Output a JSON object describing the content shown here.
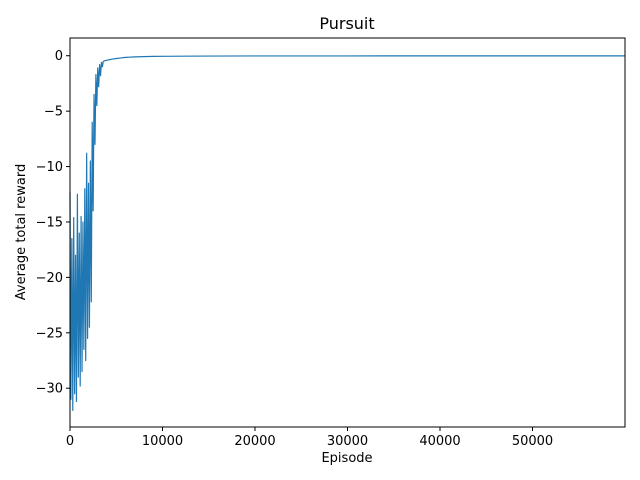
{
  "chart_data": {
    "type": "line",
    "title": "Pursuit",
    "xlabel": "Episode",
    "ylabel": "Average total reward",
    "xlim": [
      0,
      60000
    ],
    "ylim": [
      -33.5,
      1.6
    ],
    "x_ticks": [
      0,
      10000,
      20000,
      30000,
      40000,
      50000
    ],
    "x_tick_labels": [
      "0",
      "10000",
      "20000",
      "30000",
      "40000",
      "50000"
    ],
    "y_ticks": [
      0,
      -5,
      -10,
      -15,
      -20,
      -25,
      -30
    ],
    "y_tick_labels": [
      "0",
      "−5",
      "−10",
      "−15",
      "−20",
      "−25",
      "−30"
    ],
    "grid": false,
    "series": [
      {
        "color": "#1f77b4",
        "x": [
          0,
          100,
          200,
          300,
          400,
          500,
          600,
          700,
          800,
          900,
          1000,
          1100,
          1200,
          1300,
          1400,
          1500,
          1600,
          1700,
          1800,
          1900,
          2000,
          2100,
          2200,
          2300,
          2400,
          2500,
          2600,
          2700,
          2800,
          2900,
          3000,
          3100,
          3200,
          3300,
          3400,
          3500,
          3600,
          3800,
          4000,
          4300,
          4600,
          5000,
          5500,
          6000,
          7000,
          8000,
          9000,
          10000,
          12000,
          15000,
          20000,
          30000,
          40000,
          50000,
          60000
        ],
        "y": [
          -12.3,
          -31.0,
          -16.5,
          -32.0,
          -14.6,
          -30.5,
          -18.0,
          -31.2,
          -12.5,
          -29.0,
          -16.0,
          -29.8,
          -14.5,
          -28.5,
          -15.0,
          -26.5,
          -12.0,
          -27.5,
          -8.8,
          -25.5,
          -11.5,
          -24.5,
          -9.5,
          -22.2,
          -6.0,
          -14.0,
          -3.5,
          -8.0,
          -1.7,
          -4.5,
          -1.1,
          -2.8,
          -0.8,
          -1.8,
          -0.6,
          -1.0,
          -0.5,
          -0.45,
          -0.4,
          -0.35,
          -0.3,
          -0.25,
          -0.2,
          -0.15,
          -0.1,
          -0.08,
          -0.06,
          -0.05,
          -0.04,
          -0.03,
          -0.02,
          -0.02,
          -0.01,
          -0.01,
          -0.01
        ]
      }
    ]
  }
}
